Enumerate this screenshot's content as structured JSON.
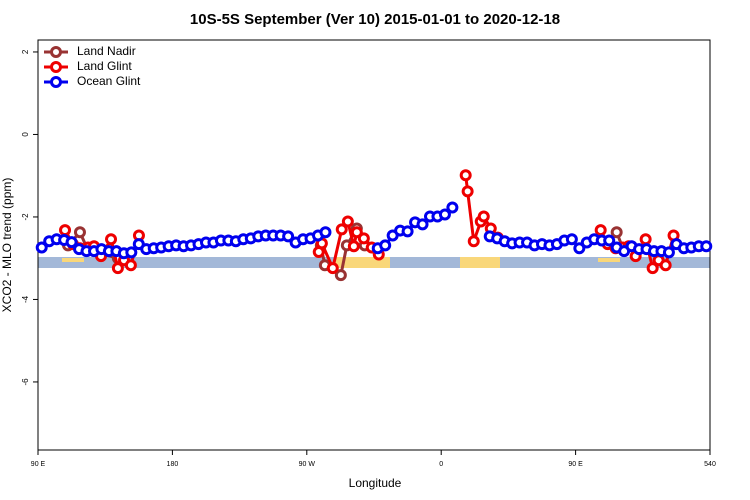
{
  "chart_data": {
    "type": "line",
    "title": "10S-5S September (Ver 10)   2015-01-01 to 2020-12-18",
    "x_label": "Longitude",
    "y_label": "XCO2 - MLO trend (ppm)",
    "xlim": [
      90,
      540
    ],
    "ylim": [
      -7.65,
      2.29
    ],
    "xticks": [
      {
        "value": 90,
        "label": "90 E"
      },
      180,
      {
        "value": 270,
        "label": "90 W"
      },
      {
        "value": 360,
        "label": "0"
      },
      {
        "value": 450,
        "label": "90 E"
      },
      540
    ],
    "yticks": [
      2,
      0,
      -2,
      -4,
      -6
    ],
    "legend": "top-left",
    "series": [
      {
        "name": "Land Nadir",
        "color": "#993333",
        "x": [
          110.1,
          118.1,
          123.5,
          143.5,
          null,
          279.4,
          282.1,
          292.8,
          296.8,
          303.5,
          308.8,
          317.5,
          null,
          477.5,
          482.2
        ],
        "values": [
          -2.69,
          -2.37,
          -2.81,
          -3.0,
          null,
          -2.69,
          -3.17,
          -3.41,
          -2.69,
          -2.28,
          -2.69,
          -2.81,
          null,
          -2.37,
          -2.81
        ]
      },
      {
        "name": "Land Glint",
        "color": "#ee0000",
        "x": [
          108.1,
          113.4,
          118.1,
          123.5,
          127.5,
          132.2,
          138.9,
          143.5,
          147.6,
          152.2,
          157.6,
          null,
          278.0,
          280.1,
          287.4,
          293.4,
          297.5,
          301.5,
          303.5,
          308.2,
          313.5,
          318.2,
          null,
          376.4,
          377.7,
          381.8,
          386.5,
          388.5,
          393.2,
          397.9,
          null,
          466.8,
          471.5,
          476.8,
          481.5,
          485.5,
          490.2,
          496.9,
          501.6,
          505.6,
          510.3,
          515.6
        ],
        "values": [
          -2.32,
          -2.66,
          -2.76,
          -2.74,
          -2.71,
          -2.95,
          -2.54,
          -3.24,
          -3.05,
          -3.17,
          -2.45,
          null,
          -2.85,
          -2.64,
          -3.24,
          -2.3,
          -2.11,
          -2.71,
          -2.37,
          -2.52,
          -2.74,
          -2.91,
          null,
          -0.99,
          -1.38,
          -2.59,
          -2.11,
          -1.99,
          -2.28,
          -2.5,
          null,
          -2.32,
          -2.66,
          -2.76,
          -2.74,
          -2.71,
          -2.95,
          -2.54,
          -3.24,
          -3.05,
          -3.17,
          -2.45
        ]
      },
      {
        "name": "Ocean Glint",
        "color": "#0000ee",
        "x": [
          92.5,
          97.5,
          102.5,
          107.5,
          112.5,
          117.5,
          122.5,
          127.5,
          132.5,
          137.5,
          142.5,
          147.5,
          152.5,
          157.5,
          162.5,
          167.5,
          172.5,
          177.5,
          182.5,
          187.5,
          192.5,
          197.5,
          202.5,
          207.5,
          212.5,
          217.5,
          222.5,
          227.5,
          232.5,
          237.5,
          242.5,
          247.5,
          252.5,
          257.5,
          262.5,
          267.5,
          272.5,
          277.5,
          282.5,
          287.5,
          292.5,
          297.5,
          302.5,
          307.5,
          312.5,
          317.5,
          322.5,
          327.5,
          332.5,
          337.5,
          342.5,
          347.5,
          352.5,
          357.5,
          362.5,
          367.5,
          372.5,
          377.5,
          382.5,
          387.5,
          392.5,
          397.5,
          402.5,
          407.5,
          412.5,
          417.5,
          422.5,
          427.5,
          432.5,
          437.5,
          442.5,
          447.5,
          452.5,
          457.5,
          462.5,
          467.5,
          472.5,
          477.5,
          482.5,
          487.5,
          492.5,
          497.5,
          502.5,
          507.5,
          512.5,
          517.5,
          522.5,
          527.5,
          532.5,
          537.5
        ],
        "values": [
          -2.74,
          -2.59,
          -2.54,
          -2.56,
          -2.61,
          -2.78,
          -2.83,
          -2.83,
          -2.78,
          -2.83,
          -2.83,
          -2.88,
          -2.86,
          -2.66,
          -2.78,
          -2.76,
          -2.74,
          -2.71,
          -2.69,
          -2.71,
          -2.69,
          -2.66,
          -2.62,
          -2.62,
          -2.57,
          -2.57,
          -2.59,
          -2.54,
          -2.52,
          -2.47,
          -2.45,
          -2.45,
          -2.45,
          -2.47,
          -2.62,
          -2.54,
          -2.52,
          -2.45,
          -2.37,
          null,
          null,
          null,
          null,
          null,
          null,
          -2.76,
          -2.69,
          -2.45,
          -2.33,
          -2.35,
          -2.13,
          -2.18,
          -1.99,
          -1.99,
          -1.94,
          -1.77,
          null,
          null,
          null,
          null,
          -2.47,
          -2.52,
          -2.59,
          -2.64,
          -2.62,
          -2.62,
          -2.69,
          -2.66,
          -2.69,
          -2.66,
          -2.57,
          -2.54,
          -2.76,
          -2.62,
          -2.54,
          -2.57,
          -2.57,
          -2.74,
          -2.83,
          -2.71,
          -2.78,
          -2.78,
          -2.83,
          -2.83,
          -2.86,
          -2.66,
          -2.76,
          -2.74,
          -2.71,
          -2.71
        ]
      }
    ]
  }
}
